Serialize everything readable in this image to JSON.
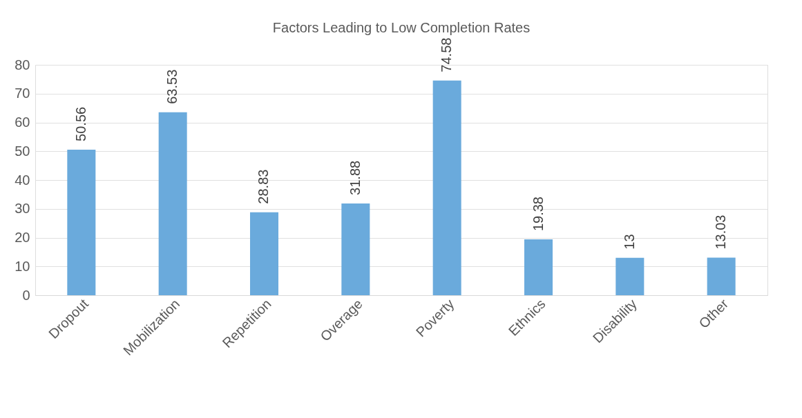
{
  "chart_data": {
    "type": "bar",
    "title": "Factors Leading to Low Completion Rates",
    "categories": [
      "Dropout",
      "Mobilization",
      "Repetition",
      "Overage",
      "Poverty",
      "Ethnics",
      "Disability",
      "Other"
    ],
    "values": [
      50.56,
      63.53,
      28.83,
      31.88,
      74.58,
      19.38,
      13,
      13.03
    ],
    "color": "#6aaadc",
    "ylim": [
      0,
      80
    ],
    "yticks": [
      0,
      10,
      20,
      30,
      40,
      50,
      60,
      70,
      80
    ],
    "grid": "y",
    "data_labels": true
  }
}
